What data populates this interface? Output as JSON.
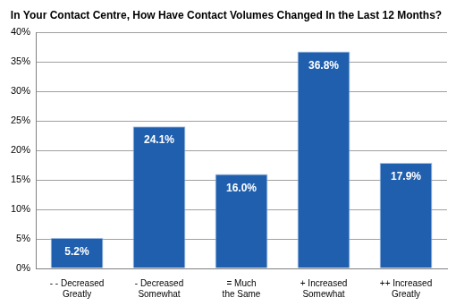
{
  "chart_data": {
    "type": "bar",
    "title": "In Your Contact Centre, How Have Contact Volumes Changed In the Last 12 Months?",
    "categories": [
      "- - Decreased Greatly",
      "- Decreased Somewhat",
      "= Much the Same",
      "+ Increased Somewhat",
      "++ Increased Greatly"
    ],
    "values": [
      5.2,
      24.1,
      16.0,
      36.8,
      17.9
    ],
    "value_labels": [
      "5.2%",
      "24.1%",
      "16.0%",
      "36.8%",
      "17.9%"
    ],
    "data_labels": true,
    "color": "#1f5fae",
    "ylim": [
      0,
      40
    ],
    "yticks": [
      {
        "value": 0,
        "label": "0%"
      },
      {
        "value": 5,
        "label": "5%"
      },
      {
        "value": 10,
        "label": "10%"
      },
      {
        "value": 15,
        "label": "15%"
      },
      {
        "value": 20,
        "label": "20%"
      },
      {
        "value": 25,
        "label": "25%"
      },
      {
        "value": 30,
        "label": "30%"
      },
      {
        "value": 35,
        "label": "35%"
      },
      {
        "value": 40,
        "label": "40%"
      }
    ],
    "grid": true
  }
}
